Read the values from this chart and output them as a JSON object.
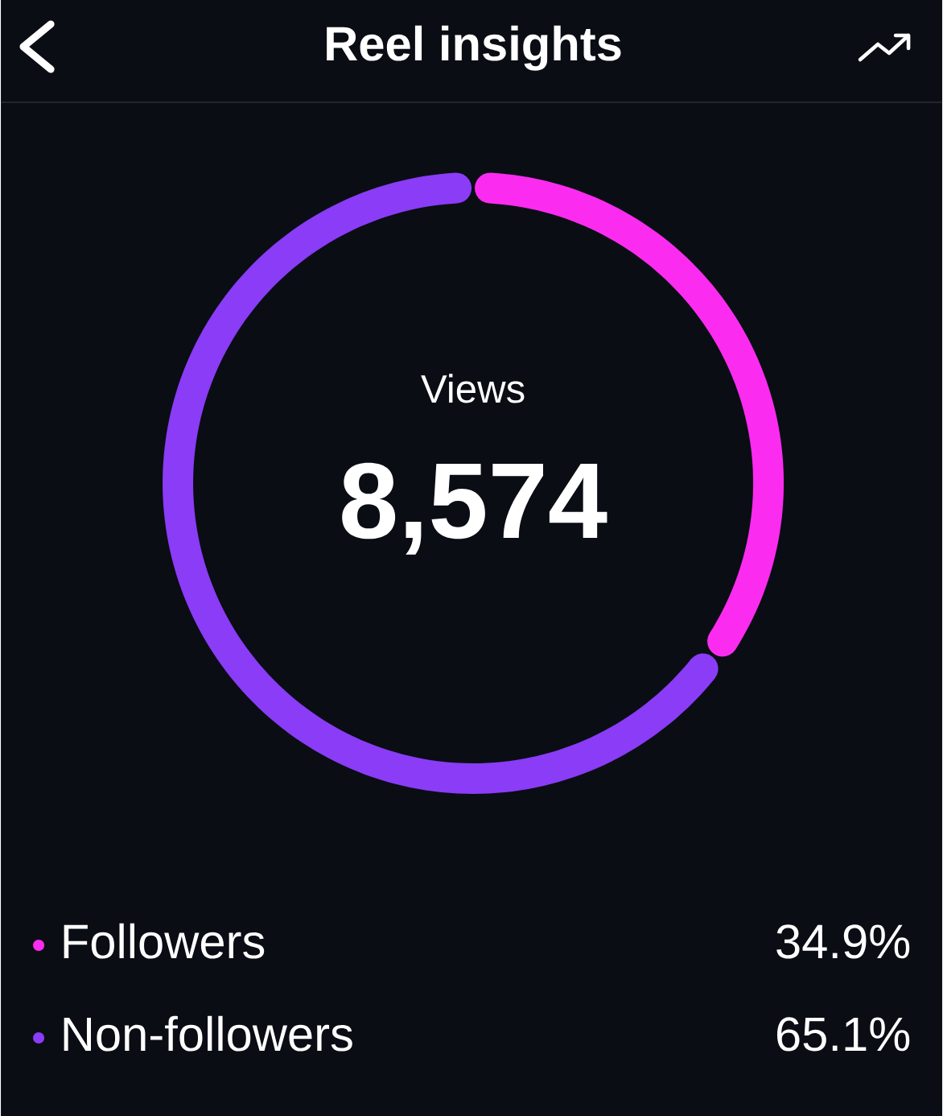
{
  "chart_data": {
    "type": "donut",
    "title": "Reel insights",
    "categories": [
      "Followers",
      "Non-followers"
    ],
    "values": [
      34.9,
      65.1
    ],
    "colors": [
      "#fb2cf0",
      "#8a3cf6"
    ],
    "value_labels": [
      "34.9%",
      "65.1%"
    ],
    "legend": "bottom",
    "annotations": [
      "Views",
      "8,574"
    ]
  }
}
